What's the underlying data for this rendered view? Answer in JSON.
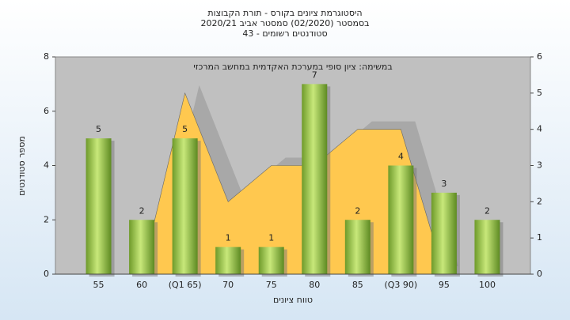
{
  "chart_data": {
    "type": "bar",
    "title_lines": [
      "היסטוגרמת ציונים בקורס - תורת הקבוצות",
      "בסמסטר  (02/2020)  סמסטר אביב 2020/21",
      "סטודנטים רשומים - 43"
    ],
    "subtitle": "במשימה: ציון סופי במערכת האקדמית במחשב המרכזי",
    "xlabel": "טווח ציונים",
    "ylabel": "מספר סטודנטים",
    "categories": [
      "55",
      "60",
      "(Q1 65)",
      "70",
      "75",
      "80",
      "85",
      "(Q3 90)",
      "95",
      "100"
    ],
    "series": [
      {
        "type": "area",
        "color": "#ffc84f",
        "axis": "y2",
        "values": [
          null,
          0,
          5,
          2,
          3,
          3,
          4,
          4,
          0,
          null
        ]
      },
      {
        "type": "bar",
        "color": "#8fbf3f",
        "values": [
          5,
          2,
          5,
          1,
          1,
          7,
          2,
          4,
          3,
          2
        ]
      }
    ],
    "ylim": [
      0,
      8
    ],
    "yticks": [
      0,
      2,
      4,
      6,
      8
    ],
    "y2lim": [
      0,
      6
    ],
    "y2ticks": [
      0,
      1,
      2,
      3,
      4,
      5,
      6
    ]
  }
}
